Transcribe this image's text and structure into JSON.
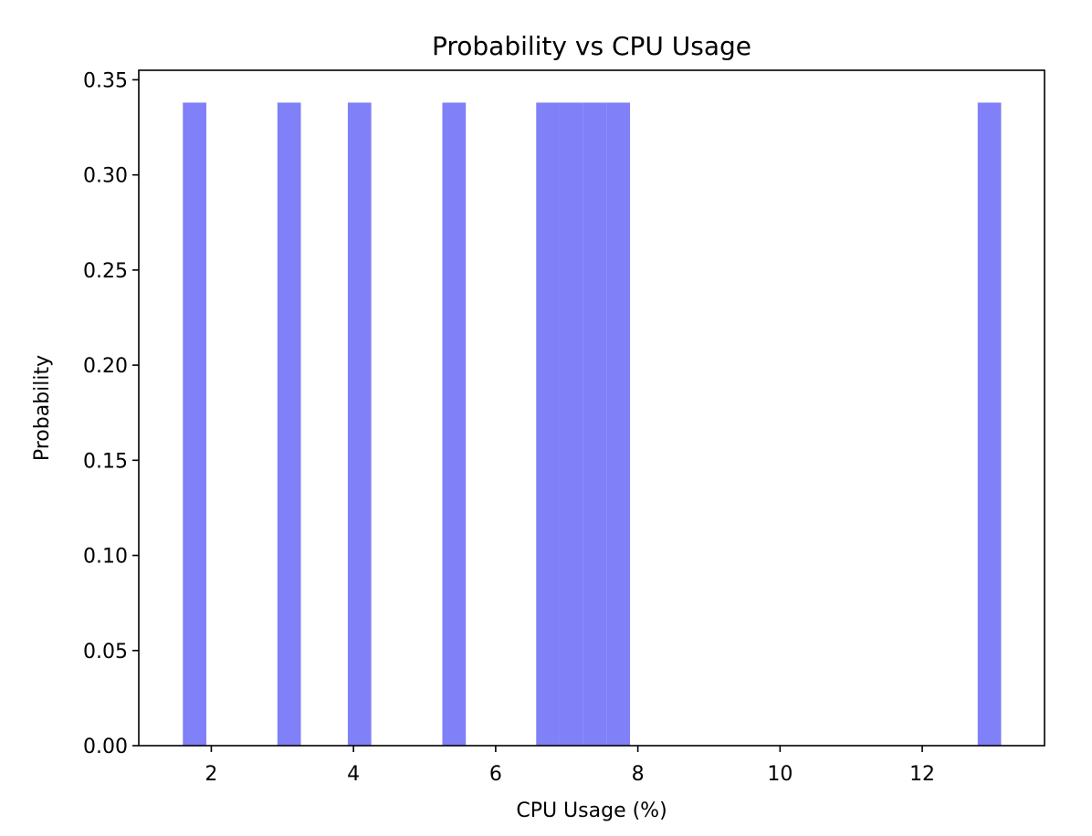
{
  "chart_data": {
    "type": "bar",
    "title": "Probability vs CPU Usage",
    "xlabel": "CPU Usage (%)",
    "ylabel": "Probability",
    "xlim": [
      0.98,
      13.72
    ],
    "ylim": [
      0,
      0.355
    ],
    "xticks": [
      2,
      4,
      6,
      8,
      10,
      12
    ],
    "yticks": [
      "0.00",
      "0.05",
      "0.10",
      "0.15",
      "0.20",
      "0.25",
      "0.30",
      "0.35"
    ],
    "bar_color": "#8080f8",
    "grid": false,
    "bars": [
      {
        "x0": 1.6,
        "x1": 1.93,
        "value": 0.338
      },
      {
        "x0": 2.93,
        "x1": 3.26,
        "value": 0.338
      },
      {
        "x0": 3.92,
        "x1": 4.25,
        "value": 0.338
      },
      {
        "x0": 5.25,
        "x1": 5.58,
        "value": 0.338
      },
      {
        "x0": 6.57,
        "x1": 6.9,
        "value": 0.338
      },
      {
        "x0": 6.9,
        "x1": 7.23,
        "value": 0.338
      },
      {
        "x0": 7.23,
        "x1": 7.56,
        "value": 0.338
      },
      {
        "x0": 7.56,
        "x1": 7.89,
        "value": 0.338
      },
      {
        "x0": 12.78,
        "x1": 13.11,
        "value": 0.338
      }
    ]
  }
}
